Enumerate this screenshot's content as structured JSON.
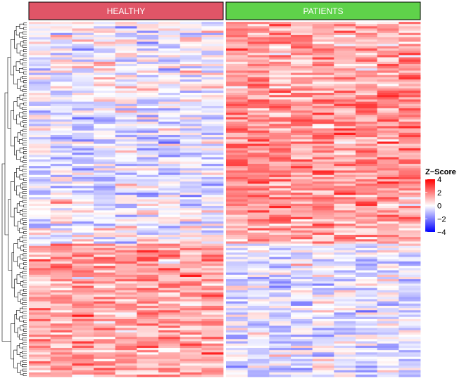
{
  "chart_data": {
    "type": "heatmap",
    "title": "",
    "xlabel": "",
    "ylabel": "",
    "groups": [
      {
        "name": "HEALTHY",
        "color": "#e05567",
        "columns": 9
      },
      {
        "name": "PATIENTS",
        "color": "#5fd24a",
        "columns": 9
      }
    ],
    "n_rows": 160,
    "row_dendrogram": true,
    "value_range": [
      -4,
      4
    ],
    "colors": {
      "low": "#0000ff",
      "mid": "#ffffff",
      "high": "#ff0000"
    },
    "legend": {
      "title": "Z−Score",
      "ticks": [
        {
          "value": 4,
          "label": "4"
        },
        {
          "value": 2,
          "label": "2"
        },
        {
          "value": 0,
          "label": "0"
        },
        {
          "value": -2,
          "label": "−2"
        },
        {
          "value": -4,
          "label": "−4"
        }
      ],
      "position": "right"
    },
    "row_blocks": [
      {
        "rows": 36,
        "healthy_mean": -0.1,
        "patients_mean": 1.4
      },
      {
        "rows": 44,
        "healthy_mean": -0.5,
        "patients_mean": 1.8
      },
      {
        "rows": 20,
        "healthy_mean": 0.0,
        "patients_mean": 1.5
      },
      {
        "rows": 60,
        "healthy_mean": 1.4,
        "patients_mean": -0.4
      }
    ]
  }
}
